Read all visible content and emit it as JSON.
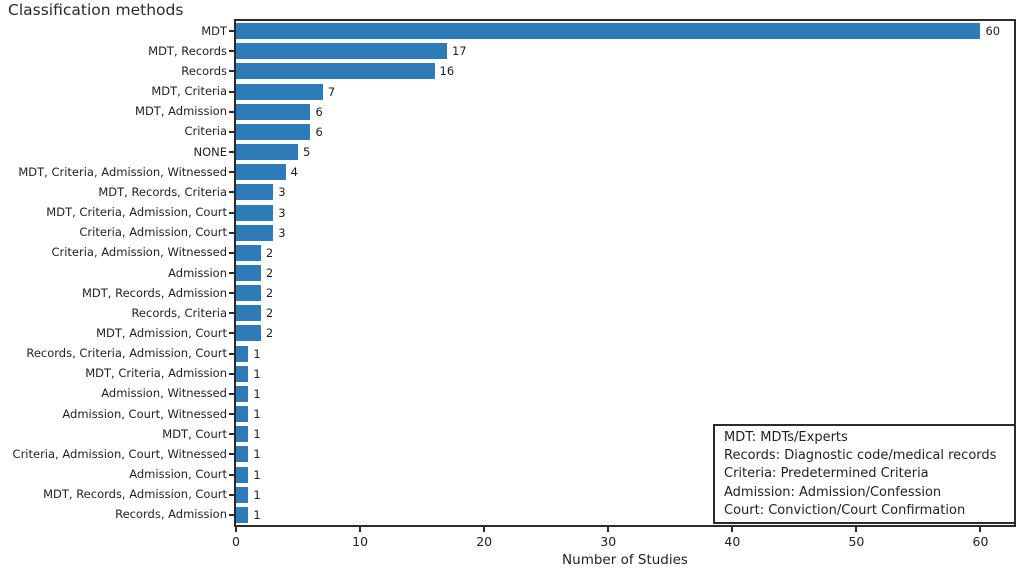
{
  "title": "Classification methods",
  "chart_data": {
    "type": "bar",
    "orientation": "horizontal",
    "title": "Classification methods",
    "xlabel": "Number of Studies",
    "ylabel": "",
    "categories": [
      "MDT",
      "MDT, Records",
      "Records",
      "MDT, Criteria",
      "MDT, Admission",
      "Criteria",
      "NONE",
      "MDT, Criteria, Admission, Witnessed",
      "MDT, Records, Criteria",
      "MDT, Criteria, Admission, Court",
      "Criteria, Admission, Court",
      "Criteria, Admission, Witnessed",
      "Admission",
      "MDT, Records, Admission",
      "Records, Criteria",
      "MDT, Admission, Court",
      "Records, Criteria, Admission, Court",
      "MDT, Criteria, Admission",
      "Admission, Witnessed",
      "Admission, Court, Witnessed",
      "MDT, Court",
      "Criteria, Admission, Court, Witnessed",
      "Admission, Court",
      "MDT, Records, Admission, Court",
      "Records, Admission"
    ],
    "values": [
      60,
      17,
      16,
      7,
      6,
      6,
      5,
      4,
      3,
      3,
      3,
      2,
      2,
      2,
      2,
      2,
      1,
      1,
      1,
      1,
      1,
      1,
      1,
      1,
      1
    ],
    "x_ticks": [
      0,
      10,
      20,
      30,
      40,
      50,
      60
    ],
    "xlim": [
      0,
      62.7
    ],
    "grid": false,
    "bar_color": "#2d7cb9",
    "value_labels_shown": true,
    "legend": {
      "position": "lower-right",
      "lines": [
        "MDT: MDTs/Experts",
        "Records: Diagnostic code/medical records",
        "Criteria: Predetermined Criteria",
        "Admission: Admission/Confession",
        "Court: Conviction/Court Confirmation"
      ]
    }
  }
}
